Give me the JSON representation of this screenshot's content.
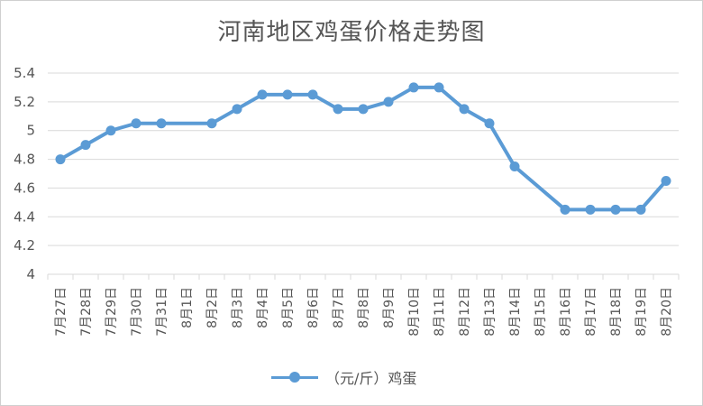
{
  "chart_data": {
    "type": "line",
    "title": "河南地区鸡蛋价格走势图",
    "categories": [
      "7月27日",
      "7月28日",
      "7月29日",
      "7月30日",
      "7月31日",
      "8月1日",
      "8月2日",
      "8月3日",
      "8月4日",
      "8月5日",
      "8月6日",
      "8月7日",
      "8月8日",
      "8月9日",
      "8月10日",
      "8月11日",
      "8月12日",
      "8月13日",
      "8月14日",
      "8月15日",
      "8月16日",
      "8月17日",
      "8月18日",
      "8月19日",
      "8月20日"
    ],
    "series": [
      {
        "name": "（元/斤）鸡蛋",
        "color": "#5b9bd5",
        "values": [
          4.8,
          4.9,
          5.0,
          5.05,
          5.05,
          null,
          5.05,
          5.15,
          5.25,
          5.25,
          5.25,
          5.15,
          5.15,
          5.2,
          5.3,
          5.3,
          5.15,
          5.05,
          4.75,
          null,
          4.45,
          4.45,
          4.45,
          4.45,
          4.65
        ]
      }
    ],
    "yticks": [
      "4",
      "4.2",
      "4.4",
      "4.6",
      "4.8",
      "5",
      "5.2",
      "5.4"
    ],
    "ylim": [
      4,
      5.4
    ],
    "grid": true,
    "legend_position": "bottom"
  }
}
